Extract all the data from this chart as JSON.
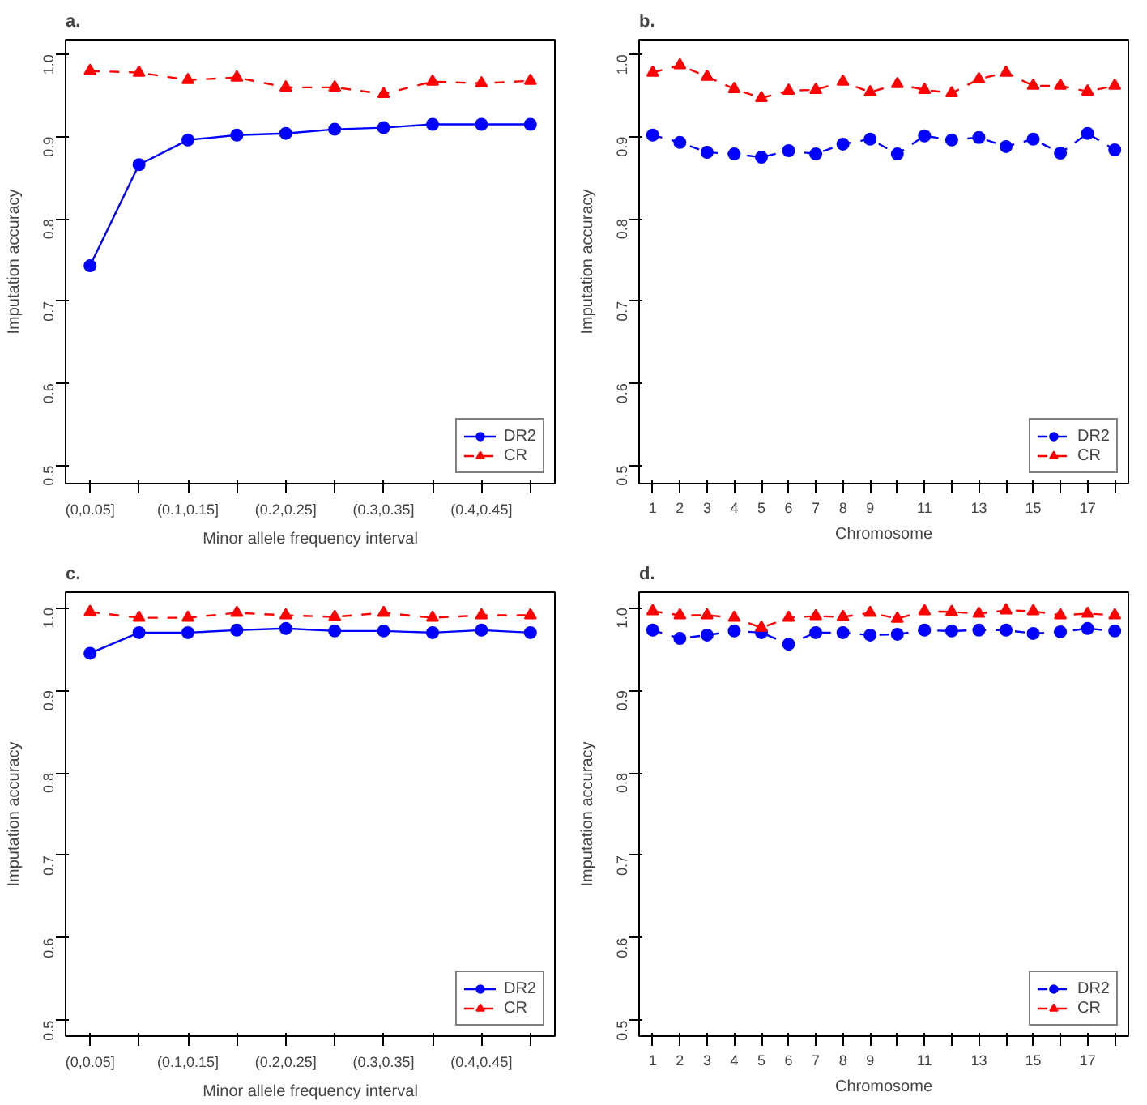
{
  "chart_data": [
    {
      "type": "line",
      "title": "a.",
      "xlabel": "Minor allele frequency interval",
      "ylabel": "Imputation accuracy",
      "categories": [
        "(0,0.05]",
        null,
        "(0.1,0.15]",
        null,
        "(0.2,0.25]",
        null,
        "(0.3,0.35]",
        null,
        "(0.4,0.45]",
        null
      ],
      "ylim": [
        0.478,
        1.018
      ],
      "yticks": [
        {
          "value": 0.5,
          "label": "0.5"
        },
        {
          "value": 0.6,
          "label": "0.6"
        },
        {
          "value": 0.7,
          "label": "0.7"
        },
        {
          "value": 0.8,
          "label": "0.8"
        },
        {
          "value": 0.9,
          "label": "0.9"
        },
        {
          "value": 1.0,
          "label": "1.0"
        }
      ],
      "grid": false,
      "legend": "bottom right",
      "series": [
        {
          "name": "DR2",
          "color": "#0000ff",
          "marker": "circle",
          "line_style": "solid",
          "values": [
            0.743,
            0.866,
            0.896,
            0.902,
            0.904,
            0.909,
            0.911,
            0.915,
            0.915,
            0.915
          ]
        },
        {
          "name": "CR",
          "color": "#ff0000",
          "marker": "triangle",
          "line_style": "dashed",
          "values": [
            0.98,
            0.978,
            0.969,
            0.972,
            0.96,
            0.96,
            0.952,
            0.967,
            0.965,
            0.968
          ]
        }
      ]
    },
    {
      "type": "line",
      "title": "b.",
      "xlabel": "Chromosome",
      "ylabel": "Imputation accuracy",
      "categories": [
        "1",
        "2",
        "3",
        "4",
        "5",
        "6",
        "7",
        "8",
        "9",
        null,
        "11",
        null,
        "13",
        null,
        "15",
        null,
        "17",
        null
      ],
      "ylim": [
        0.478,
        1.018
      ],
      "yticks": [
        {
          "value": 0.5,
          "label": "0.5"
        },
        {
          "value": 0.6,
          "label": "0.6"
        },
        {
          "value": 0.7,
          "label": "0.7"
        },
        {
          "value": 0.8,
          "label": "0.8"
        },
        {
          "value": 0.9,
          "label": "0.9"
        },
        {
          "value": 1.0,
          "label": "1.0"
        }
      ],
      "grid": false,
      "legend": "bottom right",
      "series": [
        {
          "name": "DR2",
          "color": "#0000ff",
          "marker": "circle",
          "line_style": "dashed",
          "values": [
            0.902,
            0.893,
            0.881,
            0.879,
            0.875,
            0.883,
            0.879,
            0.891,
            0.897,
            0.879,
            0.901,
            0.896,
            0.899,
            0.888,
            0.897,
            0.88,
            0.904,
            0.884
          ]
        },
        {
          "name": "CR",
          "color": "#ff0000",
          "marker": "triangle",
          "line_style": "dashed",
          "values": [
            0.978,
            0.987,
            0.973,
            0.958,
            0.947,
            0.956,
            0.957,
            0.967,
            0.954,
            0.964,
            0.957,
            0.953,
            0.97,
            0.978,
            0.962,
            0.962,
            0.955,
            0.962
          ]
        }
      ]
    },
    {
      "type": "line",
      "title": "c.",
      "xlabel": "Minor allele frequency interval",
      "ylabel": "Imputation accuracy",
      "categories": [
        "(0,0.05]",
        null,
        "(0.1,0.15]",
        null,
        "(0.2,0.25]",
        null,
        "(0.3,0.35]",
        null,
        "(0.4,0.45]",
        null
      ],
      "ylim": [
        0.481,
        1.019
      ],
      "yticks": [
        {
          "value": 0.5,
          "label": "0.5"
        },
        {
          "value": 0.6,
          "label": "0.6"
        },
        {
          "value": 0.7,
          "label": "0.7"
        },
        {
          "value": 0.8,
          "label": "0.8"
        },
        {
          "value": 0.9,
          "label": "0.9"
        },
        {
          "value": 1.0,
          "label": "1.0"
        }
      ],
      "grid": false,
      "legend": "bottom right",
      "series": [
        {
          "name": "DR2",
          "color": "#0000ff",
          "marker": "circle",
          "line_style": "solid",
          "values": [
            0.945,
            0.97,
            0.97,
            0.973,
            0.975,
            0.972,
            0.972,
            0.97,
            0.973,
            0.97
          ]
        },
        {
          "name": "CR",
          "color": "#ff0000",
          "marker": "triangle",
          "line_style": "dashed",
          "values": [
            0.995,
            0.988,
            0.988,
            0.994,
            0.991,
            0.989,
            0.994,
            0.988,
            0.991,
            0.991
          ]
        }
      ]
    },
    {
      "type": "line",
      "title": "d.",
      "xlabel": "Chromosome",
      "ylabel": "Imputation accuracy",
      "categories": [
        "1",
        "2",
        "3",
        "4",
        "5",
        "6",
        "7",
        "8",
        "9",
        null,
        "11",
        null,
        "13",
        null,
        "15",
        null,
        "17",
        null
      ],
      "ylim": [
        0.481,
        1.019
      ],
      "yticks": [
        {
          "value": 0.5,
          "label": "0.5"
        },
        {
          "value": 0.6,
          "label": "0.6"
        },
        {
          "value": 0.7,
          "label": "0.7"
        },
        {
          "value": 0.8,
          "label": "0.8"
        },
        {
          "value": 0.9,
          "label": "0.9"
        },
        {
          "value": 1.0,
          "label": "1.0"
        }
      ],
      "grid": false,
      "legend": "bottom right",
      "series": [
        {
          "name": "DR2",
          "color": "#0000ff",
          "marker": "circle",
          "line_style": "dashed",
          "values": [
            0.973,
            0.963,
            0.967,
            0.972,
            0.97,
            0.956,
            0.97,
            0.97,
            0.967,
            0.968,
            0.973,
            0.972,
            0.973,
            0.973,
            0.969,
            0.971,
            0.975,
            0.972
          ]
        },
        {
          "name": "CR",
          "color": "#ff0000",
          "marker": "triangle",
          "line_style": "dashed",
          "values": [
            0.996,
            0.991,
            0.991,
            0.988,
            0.976,
            0.988,
            0.99,
            0.989,
            0.994,
            0.987,
            0.996,
            0.995,
            0.993,
            0.997,
            0.996,
            0.991,
            0.993,
            0.991
          ]
        }
      ]
    }
  ]
}
